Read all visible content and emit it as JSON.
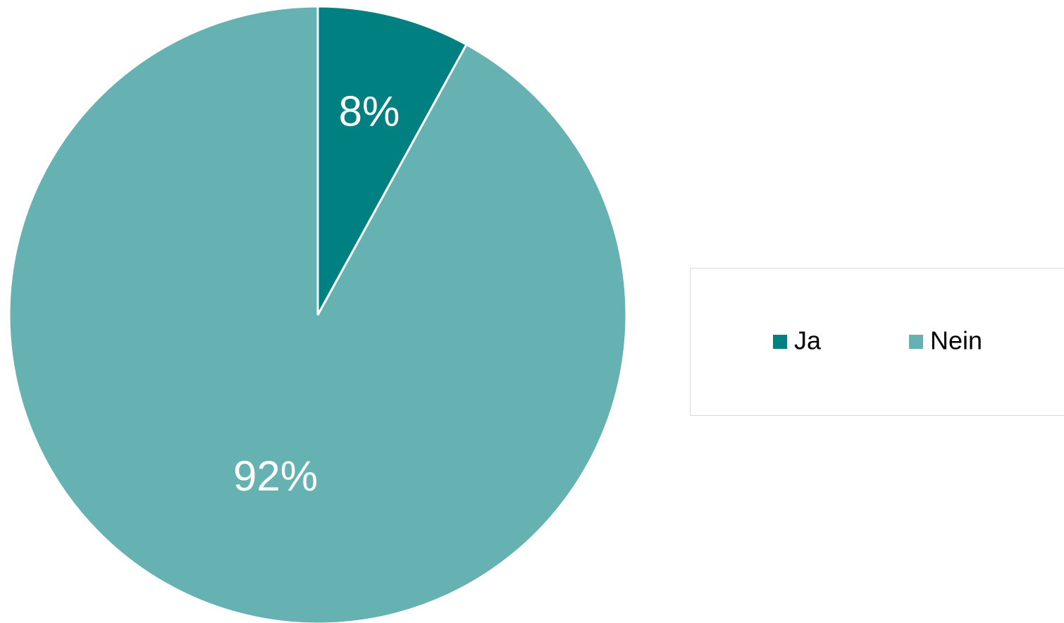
{
  "chart_data": {
    "type": "pie",
    "categories": [
      "Ja",
      "Nein"
    ],
    "values": [
      8,
      92
    ],
    "value_labels": [
      "8%",
      "92%"
    ],
    "colors": [
      "#008080",
      "#66b2b2"
    ],
    "legend": "right"
  }
}
